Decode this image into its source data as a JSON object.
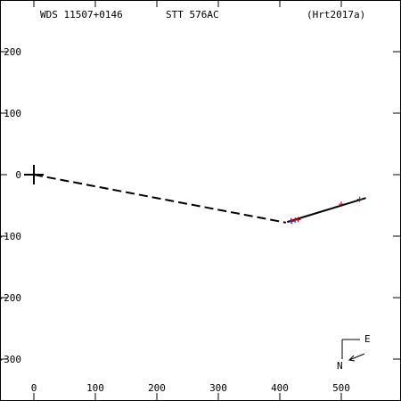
{
  "header": {
    "left": "WDS 11507+0146",
    "center": "STT 576AC",
    "right": "(Hrt2017a)"
  },
  "compass": {
    "east": "E",
    "north": "N"
  },
  "colors": {
    "primary": "#000000",
    "measure": "#cc0000",
    "measure_alt": "#3333cc",
    "fit": "#000000"
  },
  "chart_data": {
    "type": "scatter",
    "title": "",
    "xlabel": "",
    "ylabel": "",
    "xlim": [
      -50,
      600
    ],
    "ylim": [
      -365,
      280
    ],
    "xticks": [
      0,
      100,
      200,
      300,
      400,
      500
    ],
    "yticks": [
      200,
      100,
      0,
      -100,
      -200,
      -300
    ],
    "xtick_labels": [
      "0",
      "100",
      "200",
      "300",
      "400",
      "500"
    ],
    "ytick_labels": [
      "200",
      "100",
      "0",
      "-100",
      "-200",
      "-300"
    ],
    "primary_star": {
      "x": 0,
      "y": 0
    },
    "dashed_line": {
      "from": [
        0,
        0
      ],
      "to": [
        410,
        -78
      ]
    },
    "orbit_fit": [
      [
        412,
        -77
      ],
      [
        540,
        -38
      ]
    ],
    "measurements": [
      {
        "x": 418,
        "y": -75
      },
      {
        "x": 425,
        "y": -74
      },
      {
        "x": 430,
        "y": -73
      },
      {
        "x": 500,
        "y": -48
      },
      {
        "x": 530,
        "y": -40
      }
    ],
    "measurements_alt": [
      {
        "x": 420,
        "y": -76
      }
    ]
  }
}
